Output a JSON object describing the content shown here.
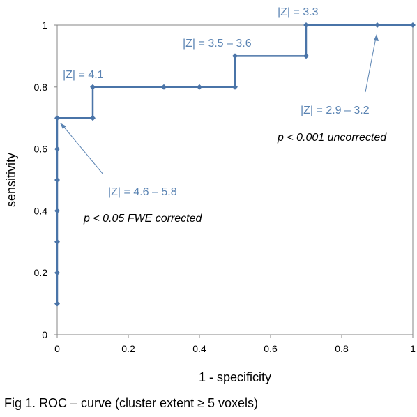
{
  "chart_data": {
    "type": "line",
    "xlabel": "1 - specificity",
    "ylabel": "sensitivity",
    "xlim": [
      0,
      1
    ],
    "ylim": [
      0,
      1
    ],
    "x_ticks": [
      "0",
      "0.2",
      "0.4",
      "0.6",
      "0.8",
      "1"
    ],
    "y_ticks": [
      "0",
      "0.2",
      "0.4",
      "0.6",
      "0.8",
      "1"
    ],
    "x_tick_values": [
      0,
      0.2,
      0.4,
      0.6,
      0.8,
      1
    ],
    "y_tick_values": [
      0,
      0.2,
      0.4,
      0.6,
      0.8,
      1
    ],
    "grid": false,
    "series": [
      {
        "color": "#4a74a8",
        "points": [
          [
            0,
            0.1
          ],
          [
            0,
            0.2
          ],
          [
            0,
            0.3
          ],
          [
            0,
            0.4
          ],
          [
            0,
            0.5
          ],
          [
            0,
            0.6
          ],
          [
            0,
            0.7
          ],
          [
            0.1,
            0.7
          ],
          [
            0.1,
            0.8
          ],
          [
            0.3,
            0.8
          ],
          [
            0.4,
            0.8
          ],
          [
            0.5,
            0.8
          ],
          [
            0.5,
            0.9
          ],
          [
            0.7,
            0.9
          ],
          [
            0.7,
            1
          ],
          [
            0.9,
            1
          ],
          [
            1,
            1
          ]
        ]
      }
    ],
    "annotations": [
      {
        "text": "|Z| = 3.3",
        "color": "#5b84b3"
      },
      {
        "text": "|Z| = 3.5 – 3.6",
        "color": "#5b84b3"
      },
      {
        "text": "|Z| = 4.1",
        "color": "#5b84b3"
      },
      {
        "text": "|Z| = 2.9 – 3.2",
        "color": "#5b84b3"
      },
      {
        "text": "p < 0.001 uncorrected",
        "color": "#000000"
      },
      {
        "text": "|Z| = 4.6 – 5.8",
        "color": "#5b84b3"
      },
      {
        "text": "p < 0.05 FWE corrected",
        "color": "#000000"
      }
    ],
    "caption": "Fig 1. ROC – curve (cluster extent ≥ 5 voxels)"
  }
}
